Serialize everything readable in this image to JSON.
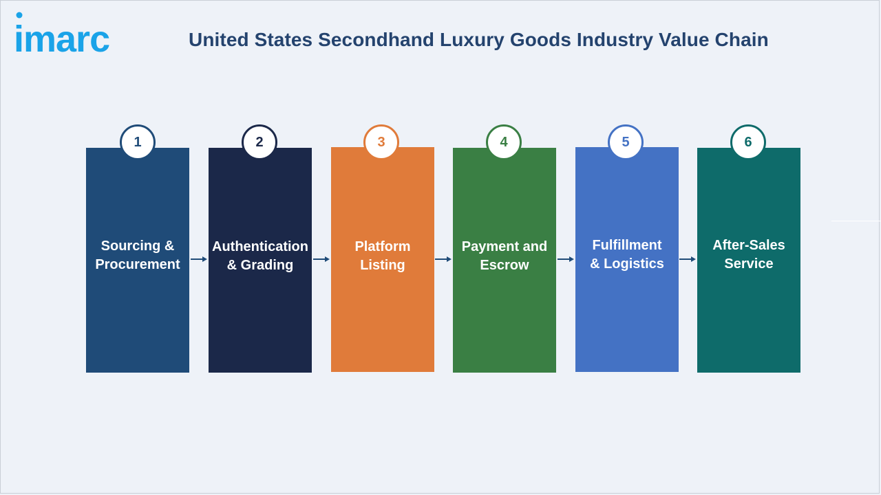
{
  "logo_text": "imarc",
  "title": "United States Secondhand Luxury Goods Industry Value Chain",
  "colors": {
    "title": "#24436e",
    "logo": "#1aa3e8",
    "arrow": "#1f4b78"
  },
  "steps": [
    {
      "number": "1",
      "label_line1": "Sourcing &",
      "label_line2": "Procurement",
      "color": "#1f4b78",
      "badge_color": "#1f4b78"
    },
    {
      "number": "2",
      "label_line1": "Authentication",
      "label_line2": "& Grading",
      "color": "#1b2849",
      "badge_color": "#1b2849"
    },
    {
      "number": "3",
      "label_line1": "Platform",
      "label_line2": "Listing",
      "color": "#e07b3a",
      "badge_color": "#e07b3a"
    },
    {
      "number": "4",
      "label_line1": "Payment and",
      "label_line2": "Escrow",
      "color": "#3a7f44",
      "badge_color": "#3a7f44"
    },
    {
      "number": "5",
      "label_line1": "Fulfillment",
      "label_line2": "& Logistics",
      "color": "#4472c4",
      "badge_color": "#4472c4"
    },
    {
      "number": "6",
      "label_line1": "After-Sales",
      "label_line2": "Service",
      "color": "#0e6b6a",
      "badge_color": "#0e6b6a"
    }
  ]
}
